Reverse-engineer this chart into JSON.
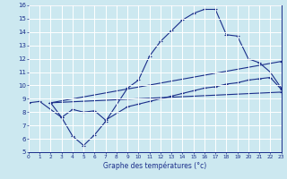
{
  "xlabel": "Graphe des températures (°c)",
  "bg_color": "#cce8f0",
  "line_color": "#1a2e8a",
  "grid_color": "#ffffff",
  "xmin": 0,
  "xmax": 23,
  "ymin": 5,
  "ymax": 16,
  "xticks": [
    0,
    1,
    2,
    3,
    4,
    5,
    6,
    7,
    8,
    9,
    10,
    11,
    12,
    13,
    14,
    15,
    16,
    17,
    18,
    19,
    20,
    21,
    22,
    23
  ],
  "yticks": [
    5,
    6,
    7,
    8,
    9,
    10,
    11,
    12,
    13,
    14,
    15,
    16
  ],
  "s1x": [
    0,
    1,
    3,
    4,
    5,
    6,
    7,
    9,
    10,
    11,
    12,
    13,
    14,
    15,
    16,
    17,
    18,
    19,
    20,
    21,
    22,
    23
  ],
  "s1y": [
    8.7,
    8.8,
    7.6,
    6.2,
    5.5,
    6.3,
    7.3,
    9.8,
    10.4,
    12.2,
    13.3,
    14.1,
    14.9,
    15.4,
    15.7,
    15.7,
    13.8,
    13.7,
    12.0,
    11.7,
    11.0,
    9.8
  ],
  "s2x": [
    2,
    3,
    4,
    5,
    6,
    7,
    9,
    10,
    11,
    12,
    13,
    14,
    15,
    16,
    17,
    18,
    19,
    20,
    21,
    22,
    23
  ],
  "s2y": [
    8.7,
    7.6,
    8.2,
    8.0,
    8.1,
    7.4,
    8.4,
    8.6,
    8.8,
    9.0,
    9.2,
    9.4,
    9.6,
    9.8,
    9.9,
    10.1,
    10.2,
    10.4,
    10.5,
    10.6,
    9.7
  ],
  "s3x": [
    2,
    23
  ],
  "s3y": [
    8.7,
    11.8
  ],
  "s4x": [
    2,
    23
  ],
  "s4y": [
    8.7,
    9.5
  ]
}
